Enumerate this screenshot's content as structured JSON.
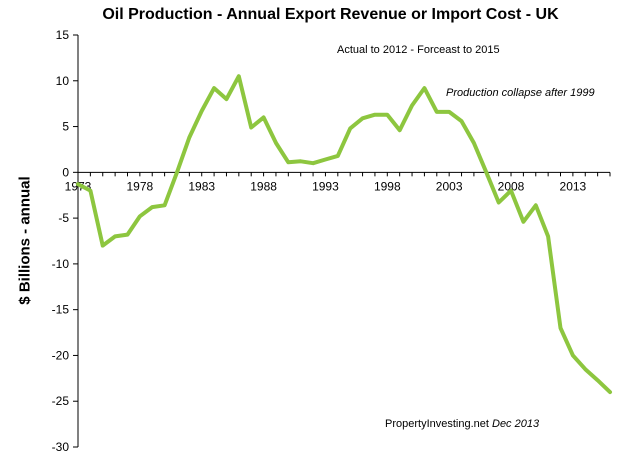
{
  "chart_data": {
    "type": "line",
    "title": "Oil Production - Annual Export Revenue or Import Cost - UK",
    "xlabel": "",
    "ylabel": "$ Billions - annual",
    "xlim": [
      1973,
      2016
    ],
    "ylim": [
      -30,
      15
    ],
    "x_ticks": [
      1973,
      1978,
      1983,
      1988,
      1993,
      1998,
      2003,
      2008,
      2013
    ],
    "y_ticks": [
      15,
      10,
      5,
      0,
      -5,
      -10,
      -15,
      -20,
      -25,
      -30
    ],
    "grid": false,
    "legend": "none",
    "series": [
      {
        "color": "#8dc63f",
        "x": [
          1973,
          1974,
          1975,
          1976,
          1977,
          1978,
          1979,
          1980,
          1981,
          1982,
          1983,
          1984,
          1985,
          1986,
          1987,
          1988,
          1989,
          1990,
          1991,
          1992,
          1993,
          1994,
          1995,
          1996,
          1997,
          1998,
          1999,
          2000,
          2001,
          2002,
          2003,
          2004,
          2005,
          2006,
          2007,
          2008,
          2009,
          2010,
          2011,
          2012,
          2013,
          2014,
          2015,
          2016
        ],
        "y": [
          -1.3,
          -2.0,
          -8.0,
          -7.0,
          -6.8,
          -4.8,
          -3.8,
          -3.6,
          0.0,
          3.8,
          6.7,
          9.2,
          8.0,
          10.5,
          4.9,
          6.0,
          3.2,
          1.1,
          1.2,
          1.0,
          1.4,
          1.8,
          4.8,
          5.9,
          6.3,
          6.3,
          4.6,
          7.3,
          9.2,
          6.6,
          6.6,
          5.6,
          3.2,
          0.0,
          -3.3,
          -2.0,
          -5.4,
          -3.6,
          -7.0,
          -17.0,
          -20.0,
          -21.5,
          -22.7,
          -24.0
        ]
      }
    ],
    "annotations": [
      "Actual to 2012 - Forceast to 2015",
      "Production collapse after 1999",
      "PropertyInvesting.net",
      "Dec 2013"
    ]
  }
}
